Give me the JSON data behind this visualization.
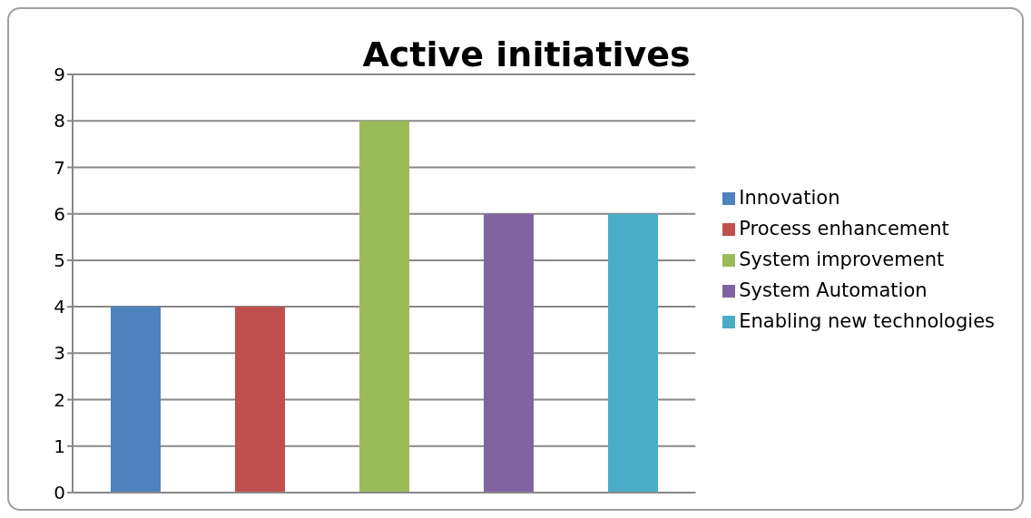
{
  "chart_data": {
    "type": "bar",
    "title": "Active initiatives",
    "categories": [
      null
    ],
    "series": [
      {
        "name": "Innovation",
        "color": "#4f81bd",
        "values": [
          4
        ]
      },
      {
        "name": "Process enhancement",
        "color": "#c0504d",
        "values": [
          4
        ]
      },
      {
        "name": "System improvement",
        "color": "#9bbb59",
        "values": [
          8
        ]
      },
      {
        "name": "System Automation",
        "color": "#8064a2",
        "values": [
          6
        ]
      },
      {
        "name": "Enabling new technologies",
        "color": "#4bacc6",
        "values": [
          6
        ]
      }
    ],
    "ylim": [
      0,
      9
    ],
    "yticks": [
      0,
      1,
      2,
      3,
      4,
      5,
      6,
      7,
      8,
      9
    ],
    "grid": "y",
    "legend": "right",
    "tick_labels": "y"
  }
}
